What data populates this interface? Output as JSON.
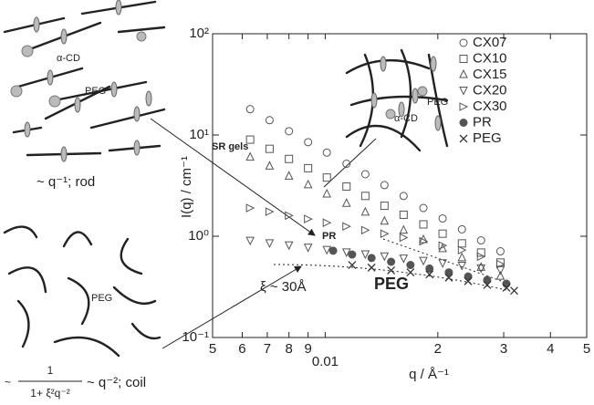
{
  "chart_data": {
    "type": "scatter",
    "xscale": "log",
    "yscale": "log",
    "xlabel": "q / Å⁻¹",
    "ylabel": "I(q) / cm⁻¹",
    "xlim": [
      0.005,
      0.05
    ],
    "ylim": [
      0.1,
      100
    ],
    "xticks": [
      {
        "value": 0.005,
        "label": "5"
      },
      {
        "value": 0.006,
        "label": "6"
      },
      {
        "value": 0.007,
        "label": "7"
      },
      {
        "value": 0.008,
        "label": "8"
      },
      {
        "value": 0.009,
        "label": "9"
      },
      0.01,
      {
        "value": 0.02,
        "label": "2"
      },
      {
        "value": 0.03,
        "label": "3"
      },
      {
        "value": 0.04,
        "label": "4"
      },
      {
        "value": 0.05,
        "label": "5"
      }
    ],
    "yticks": [
      {
        "value": 0.1,
        "label": "10⁻¹"
      },
      {
        "value": 1,
        "label": "10⁰"
      },
      {
        "value": 10,
        "label": "10¹"
      },
      {
        "value": 100,
        "label": "10²"
      }
    ],
    "legend": "upper right",
    "series": [
      {
        "name": "CX07",
        "marker": "circle",
        "color": "#555555",
        "x": [
          0.0063,
          0.0071,
          0.008,
          0.009,
          0.0101,
          0.0114,
          0.0128,
          0.0144,
          0.0162,
          0.0183,
          0.0206,
          0.0232,
          0.0261,
          0.0294
        ],
        "values": [
          18,
          14,
          10.9,
          8.5,
          6.7,
          5.2,
          4.1,
          3.2,
          2.5,
          1.9,
          1.5,
          1.17,
          0.91,
          0.71
        ]
      },
      {
        "name": "CX10",
        "marker": "square",
        "color": "#555555",
        "x": [
          0.0063,
          0.0071,
          0.008,
          0.009,
          0.0101,
          0.0114,
          0.0128,
          0.0144,
          0.0162,
          0.0183,
          0.0206,
          0.0232,
          0.0261,
          0.0294
        ],
        "values": [
          9,
          7.3,
          5.8,
          4.7,
          3.8,
          3.1,
          2.5,
          2.0,
          1.63,
          1.31,
          1.06,
          0.85,
          0.69,
          0.55
        ]
      },
      {
        "name": "CX15",
        "marker": "triangle-up",
        "color": "#555555",
        "x": [
          0.0063,
          0.0071,
          0.008,
          0.009,
          0.0101,
          0.0114,
          0.0128,
          0.0144,
          0.0162,
          0.0183,
          0.0206,
          0.0232,
          0.0261,
          0.0294
        ],
        "values": [
          6,
          4.9,
          3.9,
          3.2,
          2.6,
          2.1,
          1.72,
          1.4,
          1.14,
          0.92,
          0.75,
          0.61,
          0.49,
          0.4
        ]
      },
      {
        "name": "CX20",
        "marker": "triangle-down",
        "color": "#555555",
        "x": [
          0.0063,
          0.0071,
          0.008,
          0.009,
          0.0101,
          0.0114,
          0.0128,
          0.0144,
          0.0162,
          0.0183,
          0.0206,
          0.0232,
          0.0261,
          0.0294
        ],
        "values": [
          0.9,
          0.85,
          0.81,
          0.77,
          0.73,
          0.69,
          0.66,
          0.63,
          0.6,
          0.57,
          0.54,
          0.51,
          0.48,
          0.46
        ]
      },
      {
        "name": "CX30",
        "marker": "triangle-right",
        "color": "#555555",
        "x": [
          0.0063,
          0.0071,
          0.008,
          0.009,
          0.0101,
          0.0114,
          0.0128,
          0.0144,
          0.0162,
          0.0183,
          0.0206,
          0.0232,
          0.0261,
          0.0294
        ],
        "values": [
          1.9,
          1.75,
          1.6,
          1.48,
          1.36,
          1.25,
          1.15,
          1.06,
          0.97,
          0.89,
          0.81,
          0.73,
          0.63,
          0.53
        ]
      },
      {
        "name": "PR",
        "marker": "circle-filled",
        "color": "#555555",
        "x": [
          0.0105,
          0.0118,
          0.0133,
          0.015,
          0.0169,
          0.019,
          0.0214,
          0.0241,
          0.0271,
          0.0305
        ],
        "values": [
          0.72,
          0.66,
          0.61,
          0.56,
          0.52,
          0.48,
          0.44,
          0.4,
          0.37,
          0.34
        ]
      },
      {
        "name": "PEG",
        "marker": "x",
        "color": "#333333",
        "x": [
          0.0118,
          0.0133,
          0.015,
          0.0169,
          0.019,
          0.0214,
          0.0241,
          0.0271,
          0.0305,
          0.032
        ],
        "values": [
          0.52,
          0.49,
          0.46,
          0.44,
          0.42,
          0.39,
          0.36,
          0.33,
          0.31,
          0.29
        ]
      }
    ],
    "annotations": [
      "SR gels",
      "PR",
      "PEG",
      "ξ ~ 30Å"
    ],
    "schematic_labels": {
      "inset": [
        "α-CD",
        "PEG"
      ],
      "rod": [
        "α-CD",
        "PEG",
        "~ q⁻¹; rod"
      ],
      "coil": [
        "PEG",
        "~",
        "1",
        "1+ ξ²q⁻²",
        "~ q⁻²; coil"
      ]
    }
  }
}
